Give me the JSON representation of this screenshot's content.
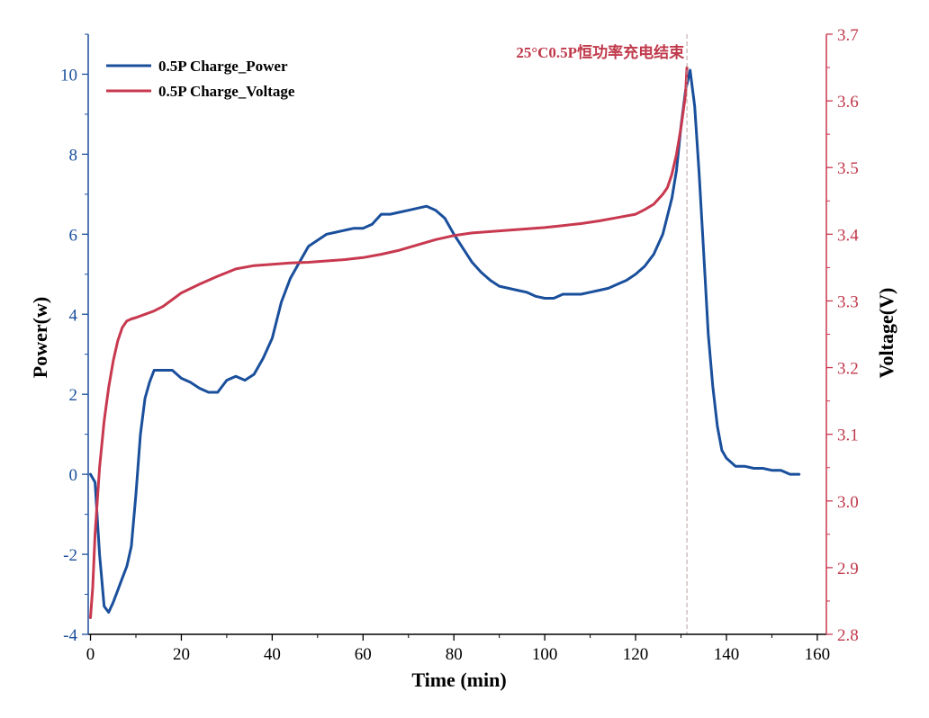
{
  "chart_data": {
    "type": "line",
    "title": "",
    "xlabel": "Time (min)",
    "ylabel_left": "Power(w)",
    "ylabel_right": "Voltage(V)",
    "xlim": [
      -0.5,
      162
    ],
    "ylim_left": [
      -4,
      11
    ],
    "ylim_right": [
      2.8,
      3.7
    ],
    "xticks": [
      0,
      20,
      40,
      60,
      80,
      100,
      120,
      140,
      160
    ],
    "yticks_left": [
      -4,
      -2,
      0,
      2,
      4,
      6,
      8,
      10
    ],
    "yticks_right": [
      2.8,
      2.9,
      3.0,
      3.1,
      3.2,
      3.3,
      3.4,
      3.5,
      3.6,
      3.7
    ],
    "grid": false,
    "legend_position": "top-left",
    "annotation": {
      "text": "25°C0.5P恒功率充电结束",
      "x": 131.3
    },
    "colors": {
      "power": "#1a4f9c",
      "voltage": "#c8394f",
      "annotation": "#c0394b"
    },
    "series": [
      {
        "name": "0.5P Charge_Power",
        "axis": "left",
        "x": [
          0,
          1,
          2,
          3,
          4,
          5,
          6,
          7,
          8,
          9,
          10,
          11,
          12,
          13,
          14,
          16,
          18,
          20,
          22,
          24,
          26,
          28,
          30,
          32,
          34,
          36,
          38,
          40,
          42,
          44,
          46,
          48,
          50,
          52,
          54,
          56,
          58,
          60,
          62,
          64,
          66,
          68,
          70,
          72,
          74,
          76,
          78,
          80,
          82,
          84,
          86,
          88,
          90,
          92,
          94,
          96,
          98,
          100,
          102,
          104,
          106,
          108,
          110,
          112,
          114,
          116,
          118,
          120,
          122,
          124,
          126,
          128,
          129,
          130,
          131,
          132,
          133,
          134,
          135,
          136,
          137,
          138,
          139,
          140,
          142,
          144,
          146,
          148,
          150,
          152,
          154,
          156
        ],
        "y": [
          0.0,
          -0.2,
          -2.0,
          -3.3,
          -3.45,
          -3.2,
          -2.9,
          -2.6,
          -2.3,
          -1.8,
          -0.5,
          1.0,
          1.9,
          2.3,
          2.6,
          2.6,
          2.6,
          2.4,
          2.3,
          2.15,
          2.05,
          2.05,
          2.35,
          2.45,
          2.35,
          2.5,
          2.9,
          3.4,
          4.3,
          4.9,
          5.3,
          5.7,
          5.85,
          6.0,
          6.05,
          6.1,
          6.15,
          6.15,
          6.25,
          6.5,
          6.5,
          6.55,
          6.6,
          6.65,
          6.7,
          6.6,
          6.4,
          6.0,
          5.65,
          5.3,
          5.05,
          4.85,
          4.7,
          4.65,
          4.6,
          4.55,
          4.45,
          4.4,
          4.4,
          4.5,
          4.5,
          4.5,
          4.55,
          4.6,
          4.65,
          4.75,
          4.85,
          5.0,
          5.2,
          5.5,
          6.0,
          6.9,
          7.6,
          8.7,
          9.6,
          10.1,
          9.2,
          7.5,
          5.5,
          3.5,
          2.2,
          1.2,
          0.6,
          0.4,
          0.2,
          0.2,
          0.15,
          0.15,
          0.1,
          0.1,
          0.0,
          0.0
        ]
      },
      {
        "name": "0.5P Charge_Voltage",
        "axis": "right",
        "x": [
          0,
          0.5,
          1,
          2,
          3,
          4,
          5,
          6,
          7,
          8,
          9,
          10,
          12,
          14,
          16,
          18,
          20,
          24,
          28,
          32,
          36,
          40,
          44,
          48,
          52,
          56,
          60,
          64,
          68,
          72,
          76,
          80,
          84,
          88,
          92,
          96,
          100,
          104,
          108,
          112,
          116,
          120,
          122,
          124,
          126,
          127,
          128,
          129,
          130,
          131,
          131.3
        ],
        "y": [
          2.825,
          2.87,
          2.95,
          3.05,
          3.12,
          3.17,
          3.21,
          3.24,
          3.26,
          3.27,
          3.273,
          3.275,
          3.28,
          3.285,
          3.292,
          3.302,
          3.312,
          3.325,
          3.337,
          3.348,
          3.353,
          3.355,
          3.357,
          3.358,
          3.36,
          3.362,
          3.365,
          3.37,
          3.376,
          3.384,
          3.392,
          3.398,
          3.402,
          3.404,
          3.406,
          3.408,
          3.41,
          3.413,
          3.416,
          3.42,
          3.425,
          3.43,
          3.437,
          3.445,
          3.46,
          3.47,
          3.49,
          3.52,
          3.56,
          3.61,
          3.65
        ]
      }
    ]
  }
}
